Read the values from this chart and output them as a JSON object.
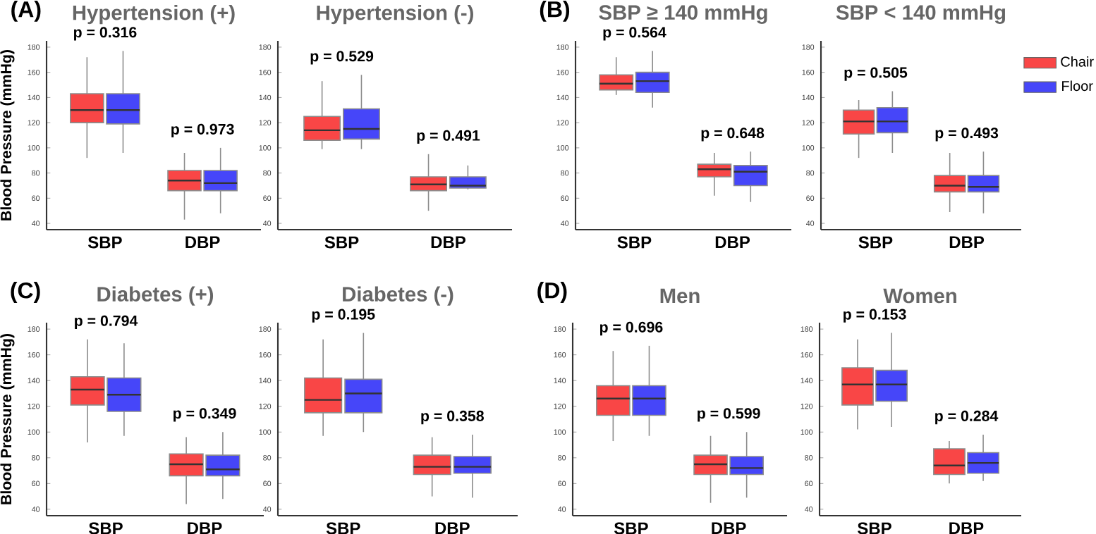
{
  "chart_data": [
    {
      "type": "box",
      "title": "Hypertension (+)",
      "ylabel": "Blood Pressure (mmHg)",
      "categories": [
        "SBP",
        "DBP"
      ],
      "ylim": [
        35,
        185
      ],
      "yticks": [
        40,
        60,
        80,
        100,
        120,
        140,
        160,
        180
      ],
      "annotations": [
        "(A)",
        "p = 0.316",
        "p = 0.973"
      ],
      "series": [
        {
          "color": "#f94646",
          "boxes": [
            {
              "low": 92,
              "q1": 120,
              "median": 130,
              "q3": 143,
              "high": 172
            },
            {
              "low": 43,
              "q1": 66,
              "median": 74,
              "q3": 82,
              "high": 96
            }
          ]
        },
        {
          "color": "#4646f9",
          "boxes": [
            {
              "low": 96,
              "q1": 119,
              "median": 130,
              "q3": 143,
              "high": 177
            },
            {
              "low": 48,
              "q1": 66,
              "median": 72,
              "q3": 82,
              "high": 100
            }
          ]
        }
      ]
    },
    {
      "type": "box",
      "title": "Hypertension (-)",
      "categories": [
        "SBP",
        "DBP"
      ],
      "ylim": [
        35,
        185
      ],
      "yticks": [
        40,
        60,
        80,
        100,
        120,
        140,
        160,
        180
      ],
      "annotations": [
        "p = 0.529",
        "p = 0.491"
      ],
      "series": [
        {
          "color": "#f94646",
          "boxes": [
            {
              "low": 99,
              "q1": 106,
              "median": 114,
              "q3": 125,
              "high": 153
            },
            {
              "low": 50,
              "q1": 66,
              "median": 71,
              "q3": 77,
              "high": 95
            }
          ]
        },
        {
          "color": "#4646f9",
          "boxes": [
            {
              "low": 99,
              "q1": 107,
              "median": 115,
              "q3": 131,
              "high": 158
            },
            {
              "low": 67,
              "q1": 68,
              "median": 70,
              "q3": 77,
              "high": 86
            }
          ]
        }
      ]
    },
    {
      "type": "box",
      "title": "SBP ≥ 140 mmHg",
      "categories": [
        "SBP",
        "DBP"
      ],
      "ylim": [
        35,
        185
      ],
      "yticks": [
        40,
        60,
        80,
        100,
        120,
        140,
        160,
        180
      ],
      "annotations": [
        "(B)",
        "p = 0.564",
        "p = 0.648"
      ],
      "series": [
        {
          "color": "#f94646",
          "boxes": [
            {
              "low": 142,
              "q1": 146,
              "median": 151,
              "q3": 158,
              "high": 172
            },
            {
              "low": 62,
              "q1": 77,
              "median": 83,
              "q3": 87,
              "high": 96
            }
          ]
        },
        {
          "color": "#4646f9",
          "boxes": [
            {
              "low": 132,
              "q1": 144,
              "median": 153,
              "q3": 160,
              "high": 177
            },
            {
              "low": 57,
              "q1": 70,
              "median": 81,
              "q3": 86,
              "high": 97
            }
          ]
        }
      ]
    },
    {
      "type": "box",
      "title": "SBP < 140 mmHg",
      "categories": [
        "SBP",
        "DBP"
      ],
      "ylim": [
        35,
        185
      ],
      "yticks": [
        40,
        60,
        80,
        100,
        120,
        140,
        160,
        180
      ],
      "legend": "right",
      "annotations": [
        "p = 0.505",
        "p = 0.493"
      ],
      "series": [
        {
          "name": "Chair",
          "color": "#f94646",
          "boxes": [
            {
              "low": 92,
              "q1": 111,
              "median": 121,
              "q3": 130,
              "high": 138
            },
            {
              "low": 49,
              "q1": 65,
              "median": 70,
              "q3": 78,
              "high": 96
            }
          ]
        },
        {
          "name": "Floor",
          "color": "#4646f9",
          "boxes": [
            {
              "low": 96,
              "q1": 112,
              "median": 121,
              "q3": 132,
              "high": 145
            },
            {
              "low": 48,
              "q1": 65,
              "median": 69,
              "q3": 78,
              "high": 97
            }
          ]
        }
      ]
    },
    {
      "type": "box",
      "title": "Diabetes (+)",
      "ylabel": "Blood Pressure (mmHg)",
      "categories": [
        "SBP",
        "DBP"
      ],
      "ylim": [
        35,
        185
      ],
      "yticks": [
        40,
        60,
        80,
        100,
        120,
        140,
        160,
        180
      ],
      "annotations": [
        "(C)",
        "p = 0.794",
        "p = 0.349"
      ],
      "series": [
        {
          "color": "#f94646",
          "boxes": [
            {
              "low": 92,
              "q1": 121,
              "median": 133,
              "q3": 143,
              "high": 172
            },
            {
              "low": 44,
              "q1": 66,
              "median": 75,
              "q3": 83,
              "high": 96
            }
          ]
        },
        {
          "color": "#4646f9",
          "boxes": [
            {
              "low": 97,
              "q1": 116,
              "median": 129,
              "q3": 142,
              "high": 169
            },
            {
              "low": 48,
              "q1": 66,
              "median": 71,
              "q3": 82,
              "high": 100
            }
          ]
        }
      ]
    },
    {
      "type": "box",
      "title": "Diabetes (-)",
      "categories": [
        "SBP",
        "DBP"
      ],
      "ylim": [
        35,
        185
      ],
      "yticks": [
        40,
        60,
        80,
        100,
        120,
        140,
        160,
        180
      ],
      "annotations": [
        "p = 0.195",
        "p = 0.358"
      ],
      "series": [
        {
          "color": "#f94646",
          "boxes": [
            {
              "low": 97,
              "q1": 115,
              "median": 125,
              "q3": 142,
              "high": 172
            },
            {
              "low": 50,
              "q1": 67,
              "median": 73,
              "q3": 82,
              "high": 96
            }
          ]
        },
        {
          "color": "#4646f9",
          "boxes": [
            {
              "low": 100,
              "q1": 115,
              "median": 130,
              "q3": 141,
              "high": 177
            },
            {
              "low": 49,
              "q1": 68,
              "median": 73,
              "q3": 81,
              "high": 98
            }
          ]
        }
      ]
    },
    {
      "type": "box",
      "title": "Men",
      "categories": [
        "SBP",
        "DBP"
      ],
      "ylim": [
        35,
        185
      ],
      "yticks": [
        40,
        60,
        80,
        100,
        120,
        140,
        160,
        180
      ],
      "annotations": [
        "(D)",
        "p = 0.696",
        "p = 0.599"
      ],
      "series": [
        {
          "color": "#f94646",
          "boxes": [
            {
              "low": 93,
              "q1": 113,
              "median": 126,
              "q3": 136,
              "high": 163
            },
            {
              "low": 45,
              "q1": 67,
              "median": 75,
              "q3": 82,
              "high": 97
            }
          ]
        },
        {
          "color": "#4646f9",
          "boxes": [
            {
              "low": 97,
              "q1": 113,
              "median": 126,
              "q3": 136,
              "high": 167
            },
            {
              "low": 49,
              "q1": 67,
              "median": 72,
              "q3": 81,
              "high": 100
            }
          ]
        }
      ]
    },
    {
      "type": "box",
      "title": "Women",
      "categories": [
        "SBP",
        "DBP"
      ],
      "ylim": [
        35,
        185
      ],
      "yticks": [
        40,
        60,
        80,
        100,
        120,
        140,
        160,
        180
      ],
      "annotations": [
        "p = 0.153",
        "p = 0.284"
      ],
      "series": [
        {
          "color": "#f94646",
          "boxes": [
            {
              "low": 102,
              "q1": 121,
              "median": 137,
              "q3": 150,
              "high": 172
            },
            {
              "low": 60,
              "q1": 67,
              "median": 74,
              "q3": 87,
              "high": 93
            }
          ]
        },
        {
          "color": "#4646f9",
          "boxes": [
            {
              "low": 104,
              "q1": 124,
              "median": 137,
              "q3": 148,
              "high": 177
            },
            {
              "low": 62,
              "q1": 68,
              "median": 76,
              "q3": 84,
              "high": 98
            }
          ]
        }
      ]
    }
  ]
}
